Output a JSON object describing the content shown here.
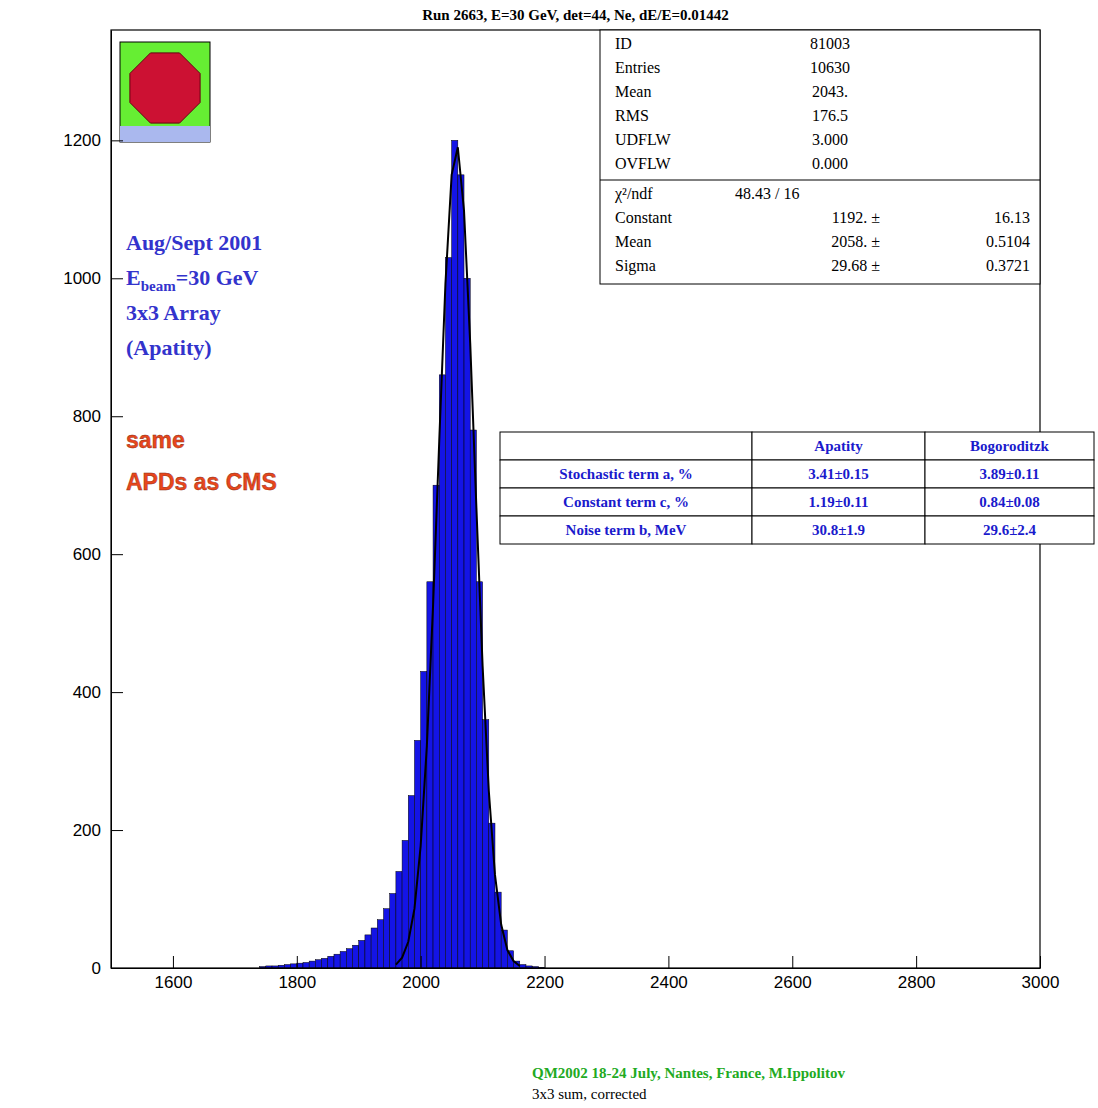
{
  "chart_data": {
    "type": "histogram",
    "title": "Run 2663, E=30 GeV, det=44, Ne, dE/E=0.01442",
    "xlabel": "3x3 sum, corrected",
    "color": "#1414e6",
    "bins": [
      1740,
      1750,
      1760,
      1770,
      1780,
      1790,
      1800,
      1810,
      1820,
      1830,
      1840,
      1850,
      1860,
      1870,
      1880,
      1890,
      1900,
      1910,
      1920,
      1930,
      1940,
      1950,
      1960,
      1970,
      1980,
      1990,
      2000,
      2010,
      2020,
      2030,
      2040,
      2050,
      2060,
      2070,
      2080,
      2090,
      2100,
      2110,
      2120,
      2130,
      2140,
      2150,
      2160,
      2170,
      2180,
      2190,
      2200
    ],
    "values": [
      2,
      3,
      3,
      4,
      5,
      6,
      7,
      8,
      10,
      12,
      14,
      17,
      20,
      24,
      28,
      33,
      40,
      48,
      58,
      70,
      86,
      108,
      140,
      185,
      250,
      330,
      430,
      560,
      700,
      860,
      1030,
      1200,
      1150,
      1000,
      780,
      560,
      360,
      210,
      110,
      55,
      25,
      10,
      5,
      3,
      2,
      1
    ],
    "fit": {
      "color": "#000000",
      "x": [
        1960,
        1970,
        1980,
        1990,
        2000,
        2010,
        2020,
        2030,
        2040,
        2050,
        2060,
        2070,
        2080,
        2090,
        2100,
        2110,
        2120,
        2130,
        2140,
        2150,
        2160
      ],
      "values": [
        5,
        15,
        38,
        86,
        177,
        322,
        525,
        764,
        992,
        1150,
        1190,
        1098,
        906,
        667,
        438,
        257,
        135,
        63,
        26,
        10,
        3
      ]
    },
    "xlim": [
      1500,
      3000
    ],
    "ylim": [
      0,
      1360
    ],
    "xticks": [
      1600,
      1800,
      2000,
      2200,
      2400,
      2600,
      2800,
      3000
    ],
    "yticks": [
      0,
      200,
      400,
      600,
      800,
      1000,
      1200
    ],
    "stats": {
      "rows": [
        [
          "ID",
          "81003"
        ],
        [
          "Entries",
          "10630"
        ],
        [
          "Mean",
          "2043."
        ],
        [
          "RMS",
          "176.5"
        ],
        [
          "UDFLW",
          "3.000"
        ],
        [
          "OVFLW",
          "0.000"
        ]
      ],
      "chi": [
        "χ²/ndf",
        "48.43  /  16"
      ],
      "fit_rows": [
        [
          "Constant",
          "1192. ±",
          "16.13"
        ],
        [
          "Mean",
          "2058. ±",
          "0.5104"
        ],
        [
          "Sigma",
          "29.68 ±",
          "0.3721"
        ]
      ]
    },
    "annotations": [
      {
        "text": "Aug/Sept 2001"
      },
      {
        "text": "E",
        "sub": "beam",
        "after": "=30 GeV"
      },
      {
        "text": "3x3 Array"
      },
      {
        "text": "(Apatity)"
      }
    ],
    "highlights": [
      "same",
      "APDs as CMS"
    ],
    "table": {
      "header": [
        "Apatity",
        "Bogoroditzk"
      ],
      "rows": [
        [
          "Stochastic term  a, %",
          "3.41±0.15",
          "3.89±0.11"
        ],
        [
          "Constant term c, %",
          "1.19±0.11",
          "0.84±0.08"
        ],
        [
          "Noise term  b, MeV",
          "30.8±1.9",
          "29.6±2.4"
        ]
      ]
    },
    "footer": "QM2002 18-24 July, Nantes, France, M.Ippolitov"
  }
}
